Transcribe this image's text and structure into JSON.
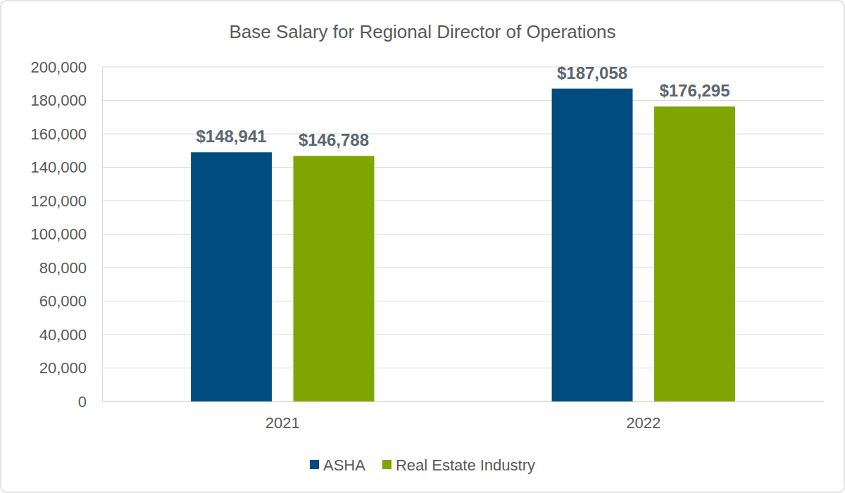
{
  "chart_data": {
    "type": "bar",
    "title": "Base Salary for Regional Director of Operations",
    "categories": [
      "2021",
      "2022"
    ],
    "series": [
      {
        "name": "ASHA",
        "color": "#004c7e",
        "values": [
          148941,
          187058
        ],
        "value_labels": [
          "$148,941",
          "$187,058"
        ]
      },
      {
        "name": "Real Estate Industry",
        "color": "#7fa600",
        "values": [
          146788,
          176295
        ],
        "value_labels": [
          "$146,788",
          "$176,295"
        ]
      }
    ],
    "ylim": [
      0,
      200000
    ],
    "yticks": [
      0,
      {
        "value": 20000,
        "label": "20,000"
      },
      {
        "value": 40000,
        "label": "40,000"
      },
      {
        "value": 60000,
        "label": "60,000"
      },
      {
        "value": 80000,
        "label": "80,000"
      },
      {
        "value": 100000,
        "label": "100,000"
      },
      {
        "value": 120000,
        "label": "120,000"
      },
      {
        "value": 140000,
        "label": "140,000"
      },
      {
        "value": 160000,
        "label": "160,000"
      },
      {
        "value": 180000,
        "label": "180,000"
      },
      {
        "value": 200000,
        "label": "200,000"
      }
    ],
    "grid": true,
    "legend": "bottom",
    "data_labels": true
  }
}
